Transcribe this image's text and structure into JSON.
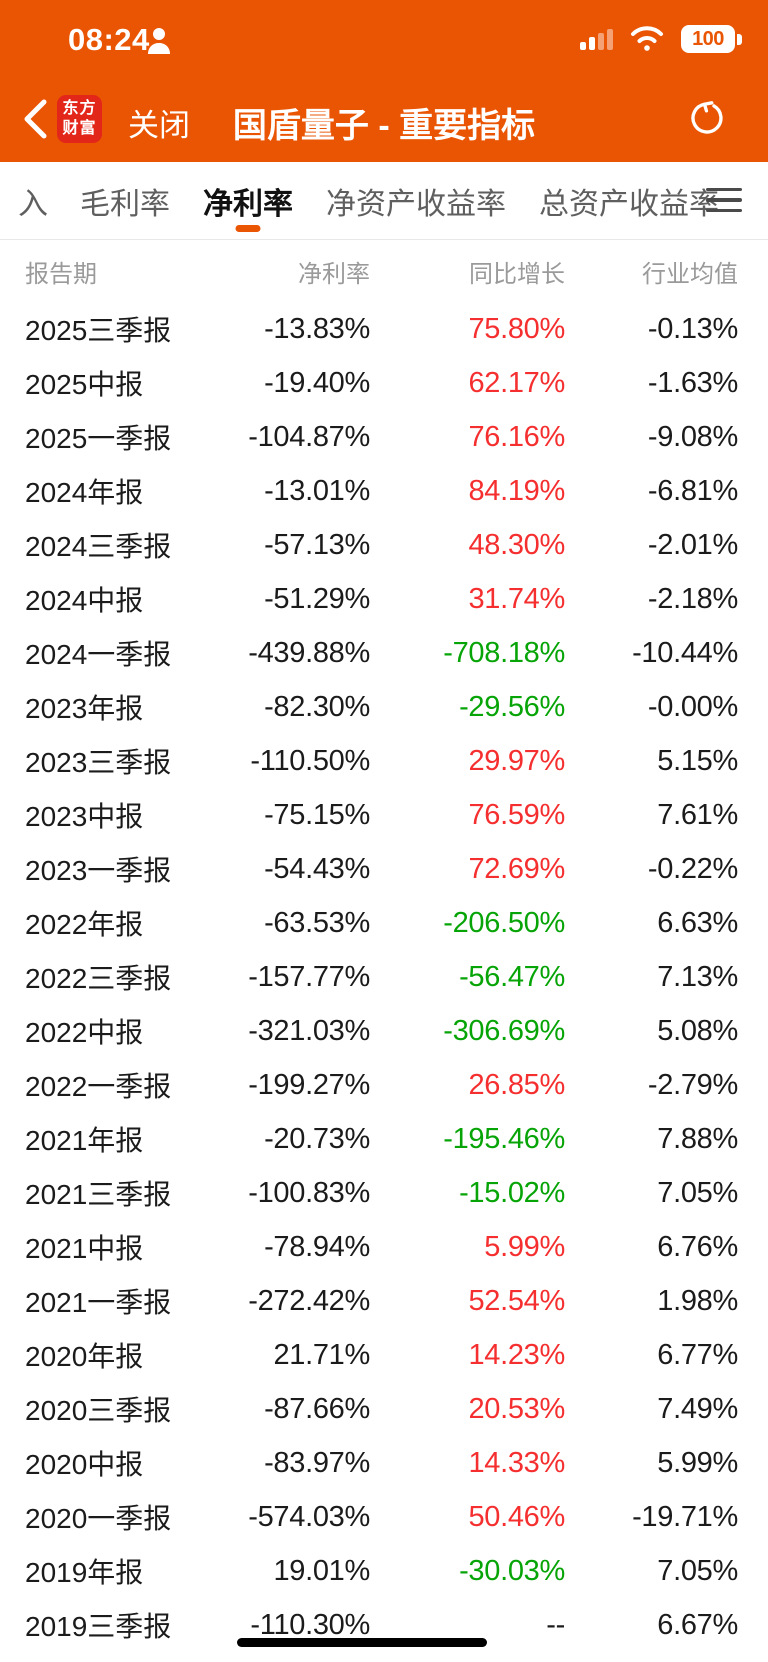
{
  "status_bar": {
    "time": "08:24",
    "battery": "100"
  },
  "nav": {
    "logo_line1": "东方",
    "logo_line2": "财富",
    "close_label": "关闭",
    "title": "国盾量子 - 重要指标"
  },
  "tabs": {
    "partial": "入",
    "items": [
      "毛利率",
      "净利率",
      "净资产收益率",
      "总资产收益率"
    ],
    "active": "净利率"
  },
  "icons": {
    "person": "user-silhouette",
    "signal": "cellular-signal-bars",
    "wifi": "wifi",
    "battery": "battery-full",
    "back": "chevron-left",
    "refresh": "circular-reload-arrow",
    "menu": "hamburger-menu"
  },
  "colors": {
    "accent": "#ea5504",
    "logo_red": "#e3261a",
    "up": "#f52f2f",
    "down": "#07a407"
  },
  "table": {
    "headers": [
      "报告期",
      "净利率",
      "同比增长",
      "行业均值"
    ],
    "rows": [
      {
        "period": "2025三季报",
        "npm": "-13.83%",
        "yoy": "75.80%",
        "yoy_dir": "up",
        "industry": "-0.13%"
      },
      {
        "period": "2025中报",
        "npm": "-19.40%",
        "yoy": "62.17%",
        "yoy_dir": "up",
        "industry": "-1.63%"
      },
      {
        "period": "2025一季报",
        "npm": "-104.87%",
        "yoy": "76.16%",
        "yoy_dir": "up",
        "industry": "-9.08%"
      },
      {
        "period": "2024年报",
        "npm": "-13.01%",
        "yoy": "84.19%",
        "yoy_dir": "up",
        "industry": "-6.81%"
      },
      {
        "period": "2024三季报",
        "npm": "-57.13%",
        "yoy": "48.30%",
        "yoy_dir": "up",
        "industry": "-2.01%"
      },
      {
        "period": "2024中报",
        "npm": "-51.29%",
        "yoy": "31.74%",
        "yoy_dir": "up",
        "industry": "-2.18%"
      },
      {
        "period": "2024一季报",
        "npm": "-439.88%",
        "yoy": "-708.18%",
        "yoy_dir": "down",
        "industry": "-10.44%"
      },
      {
        "period": "2023年报",
        "npm": "-82.30%",
        "yoy": "-29.56%",
        "yoy_dir": "down",
        "industry": "-0.00%"
      },
      {
        "period": "2023三季报",
        "npm": "-110.50%",
        "yoy": "29.97%",
        "yoy_dir": "up",
        "industry": "5.15%"
      },
      {
        "period": "2023中报",
        "npm": "-75.15%",
        "yoy": "76.59%",
        "yoy_dir": "up",
        "industry": "7.61%"
      },
      {
        "period": "2023一季报",
        "npm": "-54.43%",
        "yoy": "72.69%",
        "yoy_dir": "up",
        "industry": "-0.22%"
      },
      {
        "period": "2022年报",
        "npm": "-63.53%",
        "yoy": "-206.50%",
        "yoy_dir": "down",
        "industry": "6.63%"
      },
      {
        "period": "2022三季报",
        "npm": "-157.77%",
        "yoy": "-56.47%",
        "yoy_dir": "down",
        "industry": "7.13%"
      },
      {
        "period": "2022中报",
        "npm": "-321.03%",
        "yoy": "-306.69%",
        "yoy_dir": "down",
        "industry": "5.08%"
      },
      {
        "period": "2022一季报",
        "npm": "-199.27%",
        "yoy": "26.85%",
        "yoy_dir": "up",
        "industry": "-2.79%"
      },
      {
        "period": "2021年报",
        "npm": "-20.73%",
        "yoy": "-195.46%",
        "yoy_dir": "down",
        "industry": "7.88%"
      },
      {
        "period": "2021三季报",
        "npm": "-100.83%",
        "yoy": "-15.02%",
        "yoy_dir": "down",
        "industry": "7.05%"
      },
      {
        "period": "2021中报",
        "npm": "-78.94%",
        "yoy": "5.99%",
        "yoy_dir": "up",
        "industry": "6.76%"
      },
      {
        "period": "2021一季报",
        "npm": "-272.42%",
        "yoy": "52.54%",
        "yoy_dir": "up",
        "industry": "1.98%"
      },
      {
        "period": "2020年报",
        "npm": "21.71%",
        "yoy": "14.23%",
        "yoy_dir": "up",
        "industry": "6.77%"
      },
      {
        "period": "2020三季报",
        "npm": "-87.66%",
        "yoy": "20.53%",
        "yoy_dir": "up",
        "industry": "7.49%"
      },
      {
        "period": "2020中报",
        "npm": "-83.97%",
        "yoy": "14.33%",
        "yoy_dir": "up",
        "industry": "5.99%"
      },
      {
        "period": "2020一季报",
        "npm": "-574.03%",
        "yoy": "50.46%",
        "yoy_dir": "up",
        "industry": "-19.71%"
      },
      {
        "period": "2019年报",
        "npm": "19.01%",
        "yoy": "-30.03%",
        "yoy_dir": "down",
        "industry": "7.05%"
      },
      {
        "period": "2019三季报",
        "npm": "-110.30%",
        "yoy": "--",
        "yoy_dir": "flat",
        "industry": "6.67%"
      }
    ]
  }
}
